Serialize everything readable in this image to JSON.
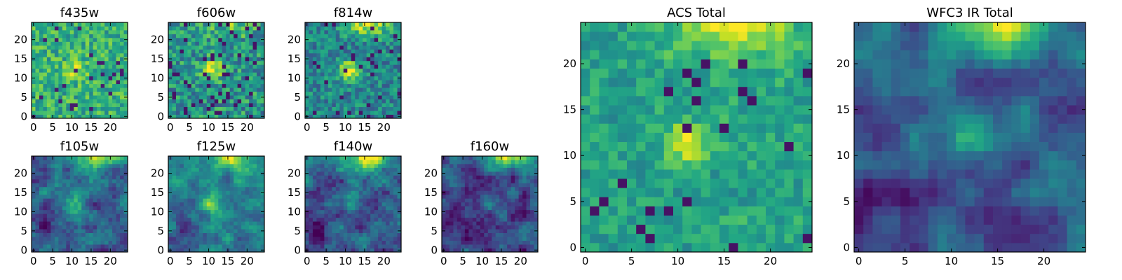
{
  "chart_data": [
    {
      "id": "f435w",
      "type": "heatmap",
      "title": "f435w",
      "grid_size": [
        25,
        25
      ],
      "x_ticks": [
        "0",
        "5",
        "10",
        "15",
        "20"
      ],
      "y_ticks": [
        "0",
        "5",
        "10",
        "15",
        "20"
      ],
      "colormap": "viridis",
      "pattern": "noisy-bright",
      "seed": 11
    },
    {
      "id": "f606w",
      "type": "heatmap",
      "title": "f606w",
      "grid_size": [
        25,
        25
      ],
      "x_ticks": [
        "0",
        "5",
        "10",
        "15",
        "20"
      ],
      "y_ticks": [
        "0",
        "5",
        "10",
        "15",
        "20"
      ],
      "colormap": "viridis",
      "pattern": "noisy-source",
      "seed": 23
    },
    {
      "id": "f814w",
      "type": "heatmap",
      "title": "f814w",
      "grid_size": [
        25,
        25
      ],
      "x_ticks": [
        "0",
        "5",
        "10",
        "15",
        "20"
      ],
      "y_ticks": [
        "0",
        "5",
        "10",
        "15",
        "20"
      ],
      "colormap": "viridis",
      "pattern": "source-corner",
      "seed": 37
    },
    {
      "id": "f105w",
      "type": "heatmap",
      "title": "f105w",
      "grid_size": [
        25,
        25
      ],
      "x_ticks": [
        "0",
        "5",
        "10",
        "15",
        "20"
      ],
      "y_ticks": [
        "0",
        "5",
        "10",
        "15",
        "20"
      ],
      "colormap": "viridis",
      "pattern": "smooth-ir",
      "seed": 41
    },
    {
      "id": "f125w",
      "type": "heatmap",
      "title": "f125w",
      "grid_size": [
        25,
        25
      ],
      "x_ticks": [
        "0",
        "5",
        "10",
        "15",
        "20"
      ],
      "y_ticks": [
        "0",
        "5",
        "10",
        "15",
        "20"
      ],
      "colormap": "viridis",
      "pattern": "smooth-ir-bright",
      "seed": 53
    },
    {
      "id": "f140w",
      "type": "heatmap",
      "title": "f140w",
      "grid_size": [
        25,
        25
      ],
      "x_ticks": [
        "0",
        "5",
        "10",
        "15",
        "20"
      ],
      "y_ticks": [
        "0",
        "5",
        "10",
        "15",
        "20"
      ],
      "colormap": "viridis",
      "pattern": "smooth-ir",
      "seed": 67
    },
    {
      "id": "f160w",
      "type": "heatmap",
      "title": "f160w",
      "grid_size": [
        25,
        25
      ],
      "x_ticks": [
        "0",
        "5",
        "10",
        "15",
        "20"
      ],
      "y_ticks": [
        "0",
        "5",
        "10",
        "15",
        "20"
      ],
      "colormap": "viridis",
      "pattern": "smooth-ir-dark",
      "seed": 79
    },
    {
      "id": "acs_total",
      "type": "heatmap",
      "title": "ACS Total",
      "grid_size": [
        25,
        25
      ],
      "x_ticks": [
        "0",
        "5",
        "10",
        "15",
        "20"
      ],
      "y_ticks": [
        "0",
        "5",
        "10",
        "15",
        "20"
      ],
      "colormap": "viridis",
      "pattern": "acs",
      "seed": 97
    },
    {
      "id": "wfc3_ir_total",
      "type": "heatmap",
      "title": "WFC3 IR Total",
      "grid_size": [
        25,
        25
      ],
      "x_ticks": [
        "0",
        "5",
        "10",
        "15",
        "20"
      ],
      "y_ticks": [
        "0",
        "5",
        "10",
        "15",
        "20"
      ],
      "colormap": "viridis",
      "pattern": "wfc3",
      "seed": 113
    }
  ]
}
